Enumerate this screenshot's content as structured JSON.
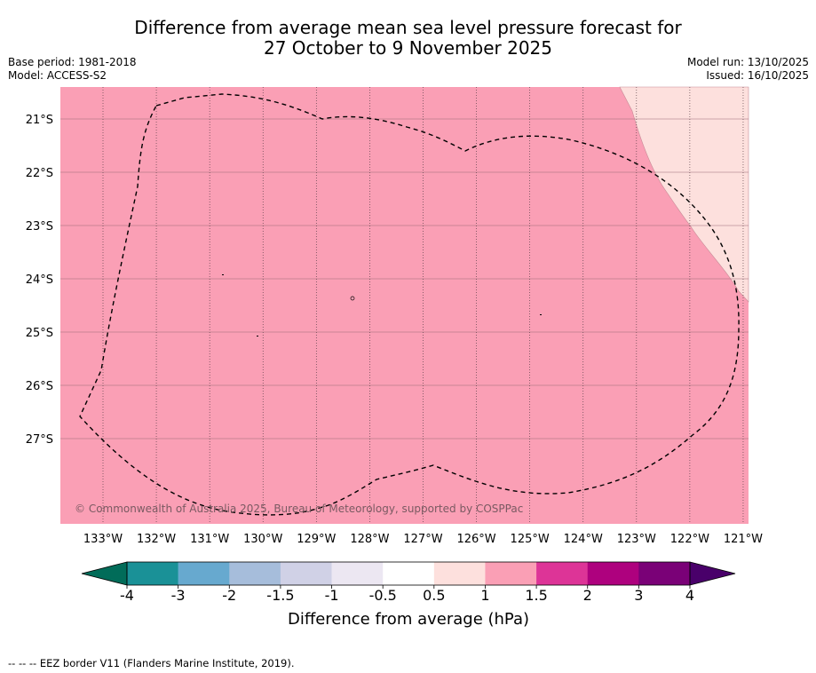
{
  "title": {
    "line1": "Difference from average mean sea level pressure forecast for",
    "line2": "27 October to 9 November 2025"
  },
  "meta": {
    "base_period": "Base period: 1981-2018",
    "model": "Model: ACCESS-S2",
    "model_run": "Model run: 13/10/2025",
    "issued": "Issued: 16/10/2025"
  },
  "map": {
    "lat_labels": [
      "21°S",
      "22°S",
      "23°S",
      "24°S",
      "25°S",
      "26°S",
      "27°S"
    ],
    "lon_labels": [
      "133°W",
      "132°W",
      "131°W",
      "130°W",
      "129°W",
      "128°W",
      "127°W",
      "126°W",
      "125°W",
      "124°W",
      "123°W",
      "122°W",
      "121°W"
    ],
    "copyright": "© Commonwealth of Australia 2025, Bureau of Meteorology, supported by COSPPac",
    "fill_colors": {
      "0.5_to_1": "#fde0dd",
      "1_to_1.5": "#fa9fb5"
    }
  },
  "colorbar": {
    "ticks": [
      "-4",
      "-3",
      "-2",
      "-1.5",
      "-1",
      "-0.5",
      "0.5",
      "1",
      "1.5",
      "2",
      "3",
      "4"
    ],
    "colors": [
      "#1a9197",
      "#67a9cf",
      "#a6bddb",
      "#d0d1e6",
      "#ece7f2",
      "#ffffff",
      "#fde0dd",
      "#fa9fb5",
      "#dd3497",
      "#ae017e",
      "#7a0177"
    ],
    "under_color": "#016c59",
    "over_color": "#49006a",
    "label": "Difference from average (hPa)"
  },
  "footnote": "-- -- -- EEZ border V11 (Flanders Marine Institute, 2019)."
}
